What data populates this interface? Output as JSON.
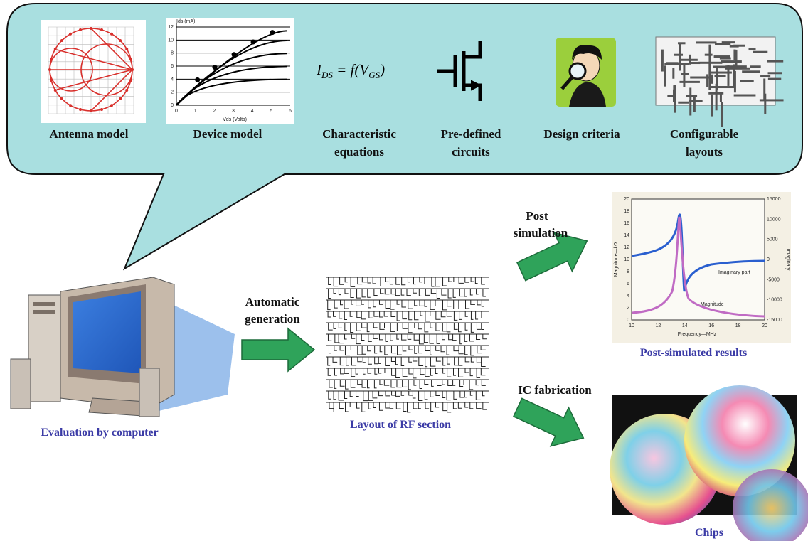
{
  "bubble": {
    "items": [
      {
        "label": [
          "Antenna model"
        ]
      },
      {
        "label": [
          "Device model"
        ]
      },
      {
        "label": [
          "Characteristic",
          "equations"
        ]
      },
      {
        "label": [
          "Pre-defined",
          "circuits"
        ]
      },
      {
        "label": [
          "Design criteria"
        ]
      },
      {
        "label": [
          "Configurable",
          "layouts"
        ]
      }
    ]
  },
  "device_model": {
    "y_label": "Ids (mA)",
    "x_label": "Vds (Volts)",
    "yticks": [
      0,
      2,
      4,
      6,
      8,
      10,
      12
    ],
    "xticks": [
      0,
      1,
      2,
      3,
      4,
      5,
      6
    ]
  },
  "equation": [
    "I",
    "DS",
    " = f(",
    "V",
    "GS",
    ")"
  ],
  "computer": {
    "label": "Evaluation by computer"
  },
  "generation": {
    "label": [
      "Automatic",
      "generation"
    ]
  },
  "layout": {
    "label": "Layout of RF section"
  },
  "post_simulation": {
    "label": [
      "Post",
      "simulation"
    ]
  },
  "results": {
    "label": "Post-simulated results",
    "plot": {
      "x_label": "Frequency—MHz",
      "y_label": "Magnitude—kΩ",
      "y2_label": "Imaginary",
      "xticks": [
        10,
        12,
        14,
        16,
        18,
        20
      ],
      "yticks": [
        0,
        2,
        4,
        6,
        8,
        10,
        12,
        14,
        16,
        18,
        20
      ],
      "y2ticks": [
        -15000,
        -10000,
        -5000,
        0,
        5000,
        10000,
        15000
      ],
      "annotations": [
        "Imaginary part",
        "Magnitude"
      ]
    }
  },
  "fabrication": {
    "label": "IC fabrication"
  },
  "chips": {
    "label": "Chips"
  }
}
